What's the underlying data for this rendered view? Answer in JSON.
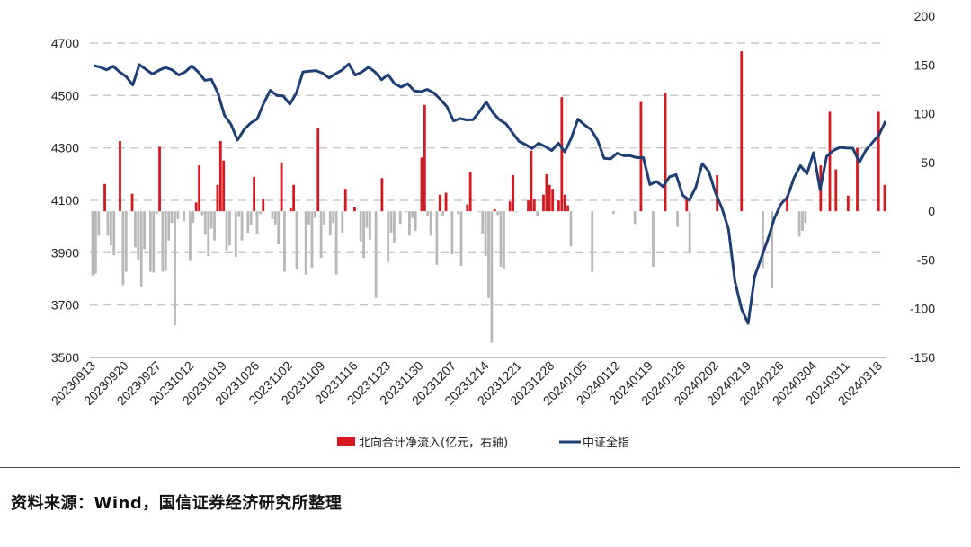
{
  "chart_data": {
    "type": "bar+line",
    "left_axis": {
      "ticks": [
        3500,
        3700,
        3900,
        4100,
        4300,
        4500,
        4700
      ],
      "range": [
        3500,
        4700
      ]
    },
    "right_axis": {
      "ticks": [
        -150,
        -100,
        -50,
        0,
        50,
        100,
        150,
        200
      ],
      "range": [
        -150,
        200
      ]
    },
    "x_tick_labels": [
      "20230913",
      "20230920",
      "20230927",
      "20231012",
      "20231019",
      "20231026",
      "20231102",
      "20231109",
      "20231116",
      "20231123",
      "20231130",
      "20231207",
      "20231214",
      "20231221",
      "20231228",
      "20240105",
      "20240112",
      "20240119",
      "20240126",
      "20240202",
      "20240219",
      "20240226",
      "20240304",
      "20240311",
      "20240318"
    ],
    "colors": {
      "bar_positive": "#d7191f",
      "bar_negative": "#b8b8b8",
      "line": "#1f3e73",
      "grid": "#c8c8c8"
    },
    "bars": {
      "name": "北向合计净流入(亿元，右轴)",
      "values": [
        -66,
        -64,
        -25,
        0,
        28,
        -25,
        -35,
        -45,
        0,
        72,
        -76,
        -62,
        0,
        18,
        -37,
        -50,
        -77,
        -39,
        0,
        -62,
        -63,
        -3,
        66,
        -62,
        -61,
        -30,
        -12,
        -117,
        -8,
        0,
        -10,
        0,
        -51,
        -12,
        9,
        47,
        -4,
        -24,
        -46,
        -18,
        -30,
        27,
        72,
        52,
        -40,
        -35,
        0,
        -47,
        -6,
        -30,
        0,
        -22,
        -14,
        35,
        -23,
        -3,
        13,
        0,
        0,
        -8,
        -14,
        -34,
        50,
        -62,
        0,
        3,
        27,
        -60,
        0,
        0,
        -65,
        -14,
        -58,
        -7,
        85,
        -48,
        -14,
        0,
        -25,
        -12,
        -65,
        0,
        -22,
        23,
        0,
        0,
        4,
        0,
        -31,
        -48,
        -17,
        -29,
        0,
        -89,
        0,
        34,
        0,
        -52,
        -22,
        -32,
        0,
        -13,
        0,
        -1,
        -25,
        -7,
        -20,
        0,
        55,
        109,
        -5,
        -25,
        0,
        -55,
        17,
        -5,
        19,
        0,
        -44,
        0,
        -3,
        -56,
        0,
        7,
        40,
        0,
        0,
        -1,
        -23,
        -46,
        -89,
        -135,
        2,
        -4,
        -57,
        -59,
        0,
        10,
        37,
        -1,
        0,
        0,
        0,
        11,
        62,
        12,
        -5,
        0,
        17,
        38,
        27,
        23,
        0,
        11,
        117,
        17,
        6,
        -36,
        0,
        0,
        0,
        0,
        0,
        0,
        -62,
        0,
        0,
        0,
        0,
        0,
        0,
        -3,
        0,
        0,
        0,
        0,
        0,
        0,
        -13,
        0,
        112,
        0,
        0,
        0,
        -57,
        0,
        0,
        0,
        121,
        0,
        0,
        0,
        -16,
        0,
        0,
        12,
        -43,
        0,
        0,
        0,
        0,
        0,
        0,
        0,
        0,
        37,
        0,
        0,
        0,
        0,
        0,
        0,
        0,
        164,
        0,
        0,
        0,
        0,
        0,
        0,
        -58,
        0,
        0,
        -79,
        0,
        0,
        0,
        0,
        16,
        0,
        0,
        0,
        -26,
        -20,
        -12,
        0,
        0,
        0,
        0,
        47,
        0,
        0,
        102,
        0,
        43,
        0,
        0,
        0,
        16,
        0,
        0,
        65,
        0,
        0,
        0,
        0,
        0,
        0,
        102,
        0,
        27
      ],
      "note": ""
    },
    "line": {
      "name": "中证全指",
      "values": [
        4615,
        4608,
        4598,
        4612,
        4590,
        4572,
        4540,
        4618,
        4600,
        4582,
        4596,
        4607,
        4598,
        4578,
        4590,
        4613,
        4590,
        4558,
        4562,
        4510,
        4425,
        4390,
        4330,
        4370,
        4395,
        4410,
        4470,
        4520,
        4500,
        4498,
        4467,
        4510,
        4590,
        4593,
        4595,
        4585,
        4567,
        4583,
        4598,
        4620,
        4578,
        4590,
        4608,
        4590,
        4560,
        4580,
        4545,
        4532,
        4545,
        4518,
        4515,
        4523,
        4510,
        4485,
        4457,
        4403,
        4412,
        4407,
        4408,
        4440,
        4475,
        4435,
        4408,
        4392,
        4358,
        4325,
        4313,
        4298,
        4318,
        4305,
        4290,
        4318,
        4285,
        4338,
        4410,
        4388,
        4370,
        4330,
        4260,
        4258,
        4280,
        4270,
        4270,
        4263,
        4263,
        4160,
        4172,
        4152,
        4190,
        4198,
        4120,
        4100,
        4150,
        4240,
        4210,
        4130,
        4070,
        3990,
        3790,
        3685,
        3630,
        3810,
        3880,
        3950,
        4030,
        4085,
        4112,
        4185,
        4232,
        4202,
        4282,
        4140,
        4268,
        4290,
        4302,
        4300,
        4299,
        4245,
        4292,
        4320,
        4350,
        4402
      ]
    }
  },
  "legend": {
    "bar_label": "北向合计净流入(亿元，右轴)",
    "line_label": "中证全指"
  },
  "source": "资料来源：Wind，国信证券经济研究所整理"
}
